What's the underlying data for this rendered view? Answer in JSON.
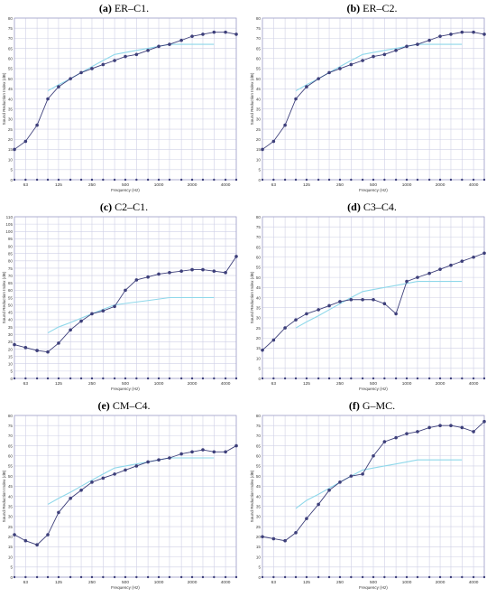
{
  "chart_data": [
    {
      "id": "a",
      "title_letter": "(a)",
      "title_text": "ER–C1.",
      "type": "line",
      "xlabel": "Frequency (Hz)",
      "ylabel": "Sound Reduction Index (dB)",
      "ylim": [
        0,
        80
      ],
      "ystep": 5,
      "xticks": [
        "63",
        "125",
        "250",
        "500",
        "1000",
        "2000",
        "4000"
      ],
      "x": [
        50,
        63,
        80,
        100,
        125,
        160,
        200,
        250,
        315,
        400,
        500,
        630,
        800,
        1000,
        1250,
        1600,
        2000,
        2500,
        3150,
        4000,
        5000
      ],
      "series": [
        {
          "values": [
            15,
            19,
            27,
            40,
            46,
            50,
            53,
            55,
            57,
            59,
            61,
            62,
            64,
            66,
            67,
            69,
            71,
            72,
            73,
            73,
            72
          ],
          "color": "#3d3f7a",
          "markers": true
        },
        {
          "x": [
            100,
            125,
            160,
            200,
            250,
            315,
            400,
            500,
            630,
            800,
            1000,
            1250,
            1600,
            2000,
            2500,
            3150
          ],
          "values": [
            44,
            47,
            50,
            53,
            56,
            59,
            62,
            63,
            64,
            65,
            66,
            67,
            67,
            67,
            67,
            67
          ],
          "color": "#8fd8ea",
          "markers": false
        }
      ]
    },
    {
      "id": "b",
      "title_letter": "(b)",
      "title_text": "ER–C2.",
      "type": "line",
      "xlabel": "Frequency (Hz)",
      "ylabel": "Sound Reduction Index (dB)",
      "ylim": [
        0,
        80
      ],
      "ystep": 5,
      "xticks": [
        "63",
        "125",
        "250",
        "500",
        "1000",
        "2000",
        "4000"
      ],
      "x": [
        50,
        63,
        80,
        100,
        125,
        160,
        200,
        250,
        315,
        400,
        500,
        630,
        800,
        1000,
        1250,
        1600,
        2000,
        2500,
        3150,
        4000,
        5000
      ],
      "series": [
        {
          "values": [
            15,
            19,
            27,
            40,
            46,
            50,
            53,
            55,
            57,
            59,
            61,
            62,
            64,
            66,
            67,
            69,
            71,
            72,
            73,
            73,
            72
          ],
          "color": "#3d3f7a",
          "markers": true
        },
        {
          "x": [
            100,
            125,
            160,
            200,
            250,
            315,
            400,
            500,
            630,
            800,
            1000,
            1250,
            1600,
            2000,
            2500,
            3150
          ],
          "values": [
            44,
            47,
            50,
            53,
            56,
            59,
            62,
            63,
            64,
            65,
            66,
            67,
            67,
            67,
            67,
            67
          ],
          "color": "#8fd8ea",
          "markers": false
        }
      ]
    },
    {
      "id": "c",
      "title_letter": "(c)",
      "title_text": "C2–C1.",
      "type": "line",
      "xlabel": "Frequency (Hz)",
      "ylabel": "Sound Reduction Index (dB)",
      "ylim": [
        0,
        110
      ],
      "ystep": 5,
      "xticks": [
        "63",
        "125",
        "250",
        "500",
        "1000",
        "2000",
        "4000"
      ],
      "x": [
        50,
        63,
        80,
        100,
        125,
        160,
        200,
        250,
        315,
        400,
        500,
        630,
        800,
        1000,
        1250,
        1600,
        2000,
        2500,
        3150,
        4000,
        5000
      ],
      "series": [
        {
          "values": [
            23,
            21,
            19,
            18,
            24,
            33,
            39,
            44,
            46,
            49,
            60,
            67,
            69,
            71,
            72,
            73,
            74,
            74,
            73,
            72,
            83
          ],
          "color": "#3d3f7a",
          "markers": true
        },
        {
          "x": [
            100,
            125,
            160,
            200,
            250,
            315,
            400,
            500,
            630,
            800,
            1000,
            1250,
            1600,
            2000,
            2500,
            3150
          ],
          "values": [
            31,
            35,
            38,
            41,
            44,
            47,
            50,
            51,
            52,
            53,
            54,
            55,
            55,
            55,
            55,
            55
          ],
          "color": "#8fd8ea",
          "markers": false
        }
      ]
    },
    {
      "id": "d",
      "title_letter": "(d)",
      "title_text": "C3–C4.",
      "type": "line",
      "xlabel": "Frequency (Hz)",
      "ylabel": "Sound Reduction Index (dB)",
      "ylim": [
        0,
        80
      ],
      "ystep": 5,
      "xticks": [
        "63",
        "125",
        "250",
        "500",
        "1000",
        "2000",
        "4000"
      ],
      "x": [
        50,
        63,
        80,
        100,
        125,
        160,
        200,
        250,
        315,
        400,
        500,
        630,
        800,
        1000,
        1250,
        1600,
        2000,
        2500,
        3150,
        4000,
        5000
      ],
      "series": [
        {
          "values": [
            14,
            19,
            25,
            29,
            32,
            34,
            36,
            38,
            39,
            39,
            39,
            37,
            32,
            48,
            50,
            52,
            54,
            56,
            58,
            60,
            62
          ],
          "color": "#3d3f7a",
          "markers": true
        },
        {
          "x": [
            100,
            125,
            160,
            200,
            250,
            315,
            400,
            500,
            630,
            800,
            1000,
            1250,
            1600,
            2000,
            2500,
            3150
          ],
          "values": [
            25,
            28,
            31,
            34,
            37,
            40,
            43,
            44,
            45,
            46,
            47,
            48,
            48,
            48,
            48,
            48
          ],
          "color": "#8fd8ea",
          "markers": false
        }
      ]
    },
    {
      "id": "e",
      "title_letter": "(e)",
      "title_text": "CM–C4.",
      "type": "line",
      "xlabel": "Frequency (Hz)",
      "ylabel": "Sound Reduction Index (dB)",
      "ylim": [
        0,
        80
      ],
      "ystep": 5,
      "xticks": [
        "63",
        "125",
        "250",
        "500",
        "1000",
        "2000",
        "4000"
      ],
      "x": [
        50,
        63,
        80,
        100,
        125,
        160,
        200,
        250,
        315,
        400,
        500,
        630,
        800,
        1000,
        1250,
        1600,
        2000,
        2500,
        3150,
        4000,
        5000
      ],
      "series": [
        {
          "values": [
            21,
            18,
            16,
            21,
            32,
            39,
            43,
            47,
            49,
            51,
            53,
            55,
            57,
            58,
            59,
            61,
            62,
            63,
            62,
            62,
            65
          ],
          "color": "#3d3f7a",
          "markers": true
        },
        {
          "x": [
            100,
            125,
            160,
            200,
            250,
            315,
            400,
            500,
            630,
            800,
            1000,
            1250,
            1600,
            2000,
            2500,
            3150
          ],
          "values": [
            36,
            39,
            42,
            45,
            48,
            51,
            54,
            55,
            56,
            57,
            58,
            59,
            59,
            59,
            59,
            59
          ],
          "color": "#8fd8ea",
          "markers": false
        }
      ]
    },
    {
      "id": "f",
      "title_letter": "(f)",
      "title_text": "G–MC.",
      "type": "line",
      "xlabel": "Frequency (Hz)",
      "ylabel": "Sound Reduction Index (dB)",
      "ylim": [
        0,
        80
      ],
      "ystep": 5,
      "xticks": [
        "63",
        "125",
        "250",
        "500",
        "1000",
        "2000",
        "4000"
      ],
      "x": [
        50,
        63,
        80,
        100,
        125,
        160,
        200,
        250,
        315,
        400,
        500,
        630,
        800,
        1000,
        1250,
        1600,
        2000,
        2500,
        3150,
        4000,
        5000
      ],
      "series": [
        {
          "values": [
            20,
            19,
            18,
            22,
            29,
            36,
            43,
            47,
            50,
            51,
            60,
            67,
            69,
            71,
            72,
            74,
            75,
            75,
            74,
            72,
            77
          ],
          "color": "#3d3f7a",
          "markers": true
        },
        {
          "x": [
            100,
            125,
            160,
            200,
            250,
            315,
            400,
            500,
            630,
            800,
            1000,
            1250,
            1600,
            2000,
            2500,
            3150
          ],
          "values": [
            34,
            38,
            41,
            44,
            47,
            50,
            53,
            54,
            55,
            56,
            57,
            58,
            58,
            58,
            58,
            58
          ],
          "color": "#8fd8ea",
          "markers": false
        }
      ]
    }
  ]
}
